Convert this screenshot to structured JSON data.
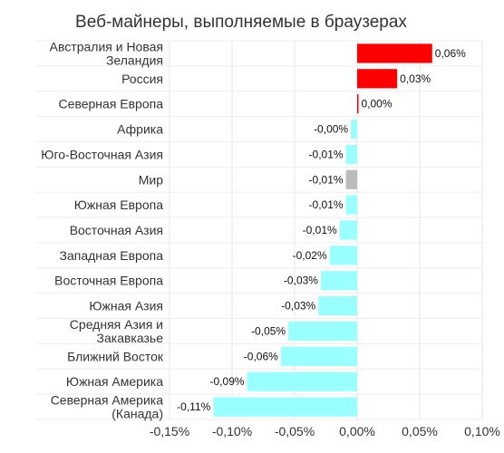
{
  "chart_data": {
    "type": "bar",
    "orientation": "horizontal",
    "title": "Веб-майнеры, выполняемые в браузерах",
    "categories": [
      "Австралия и Новая Зеландия",
      "Россия",
      "Северная Европа",
      "Африка",
      "Юго-Восточная Азия",
      "Мир",
      "Южная Европа",
      "Восточная Азия",
      "Западная Европа",
      "Восточная Европа",
      "Южная Азия",
      "Средняя Азия и Закавказье",
      "Ближний Восток",
      "Южная Америка",
      "Северная Америка (Канада)"
    ],
    "category_lines": [
      [
        "Австралия и Новая",
        "Зеландия"
      ],
      [
        "Россия"
      ],
      [
        "Северная Европа"
      ],
      [
        "Африка"
      ],
      [
        "Юго-Восточная Азия"
      ],
      [
        "Мир"
      ],
      [
        "Южная Европа"
      ],
      [
        "Восточная Азия"
      ],
      [
        "Западная Европа"
      ],
      [
        "Восточная Европа"
      ],
      [
        "Южная Азия"
      ],
      [
        "Средняя Азия и",
        "Закавказье"
      ],
      [
        "Ближний Восток"
      ],
      [
        "Южная Америка"
      ],
      [
        "Северная Америка",
        "(Канада)"
      ]
    ],
    "values": [
      0.06,
      0.032,
      0.001,
      -0.005,
      -0.009,
      -0.009,
      -0.009,
      -0.014,
      -0.022,
      -0.029,
      -0.031,
      -0.055,
      -0.061,
      -0.088,
      -0.115
    ],
    "data_labels": [
      "0,06%",
      "0,03%",
      "0,00%",
      "-0,00%",
      "-0,01%",
      "-0,01%",
      "-0,01%",
      "-0,01%",
      "-0,02%",
      "-0,03%",
      "-0,03%",
      "-0,05%",
      "-0,06%",
      "-0,09%",
      "-0,11%"
    ],
    "colors": [
      "#ff0000",
      "#ff0000",
      "#ff0000",
      "#99ffff",
      "#99ffff",
      "#bbbbbb",
      "#99ffff",
      "#99ffff",
      "#99ffff",
      "#99ffff",
      "#99ffff",
      "#99ffff",
      "#99ffff",
      "#99ffff",
      "#99ffff"
    ],
    "xlim": [
      -0.15,
      0.1
    ],
    "xticks": [
      -0.15,
      -0.1,
      -0.05,
      0.0,
      0.05,
      0.1
    ],
    "xtick_labels": [
      "-0,15%",
      "-0,10%",
      "-0,05%",
      "0,00%",
      "0,05%",
      "0,10%"
    ],
    "xlabel": "",
    "ylabel": "",
    "grid": true
  }
}
